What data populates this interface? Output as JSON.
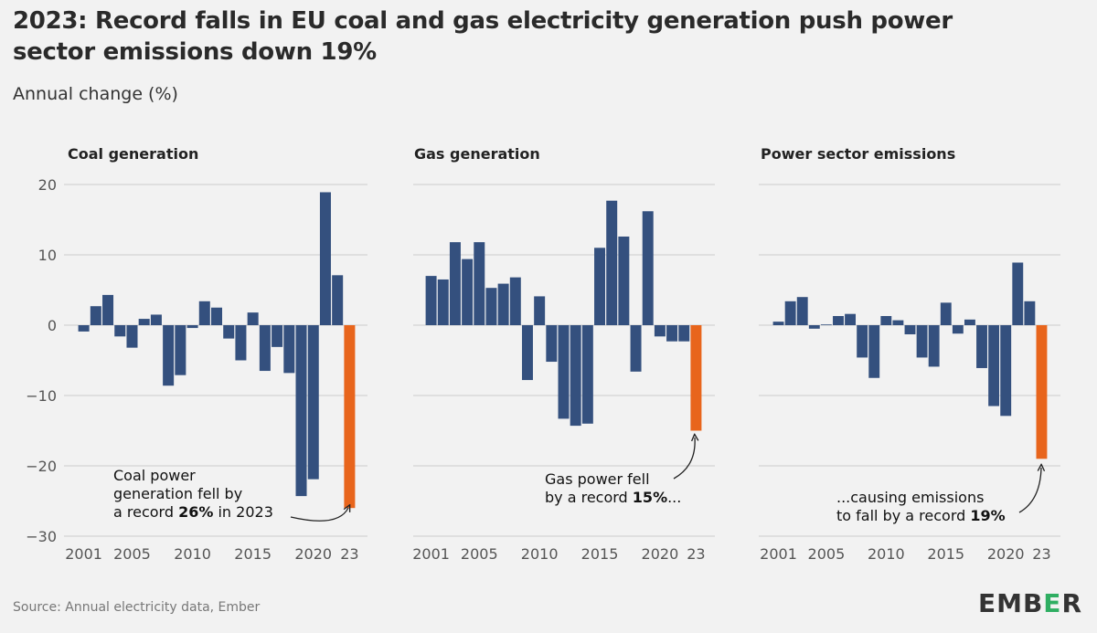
{
  "title": "2023: Record falls in EU coal and gas electricity generation push power sector emissions down 19%",
  "subtitle": "Annual change (%)",
  "source": "Source: Annual electricity data, Ember",
  "logo": {
    "text": "EMBER",
    "accent_color": "#2fae62"
  },
  "colors": {
    "bar": "#34507e",
    "highlight": "#e8651c",
    "grid": "#cccccc",
    "axis_text": "#555555"
  },
  "chart_data": [
    {
      "type": "bar",
      "title": "Coal generation",
      "x": [
        2001,
        2002,
        2003,
        2004,
        2005,
        2006,
        2007,
        2008,
        2009,
        2010,
        2011,
        2012,
        2013,
        2014,
        2015,
        2016,
        2017,
        2018,
        2019,
        2020,
        2021,
        2022,
        2023
      ],
      "values": [
        -0.9,
        2.7,
        4.3,
        -1.6,
        -3.2,
        0.9,
        1.5,
        -8.6,
        -7.1,
        -0.4,
        3.4,
        2.5,
        -1.9,
        -5.0,
        1.8,
        -6.5,
        -3.1,
        -6.8,
        -24.3,
        -21.9,
        18.9,
        7.1,
        -26
      ],
      "highlight_last": true,
      "xticks": [
        "2001",
        "2005",
        "2010",
        "2015",
        "2020",
        "23"
      ],
      "yticks": [
        20,
        10,
        0,
        -10,
        -20,
        -30
      ],
      "ylim": [
        -30,
        20
      ],
      "annotation": {
        "text": [
          "Coal power",
          "generation fell by",
          "a record 26% in 2023"
        ],
        "bold": [
          "26%"
        ]
      }
    },
    {
      "type": "bar",
      "title": "Gas generation",
      "x": [
        2001,
        2002,
        2003,
        2004,
        2005,
        2006,
        2007,
        2008,
        2009,
        2010,
        2011,
        2012,
        2013,
        2014,
        2015,
        2016,
        2017,
        2018,
        2019,
        2020,
        2021,
        2022,
        2023
      ],
      "values": [
        7.0,
        6.5,
        11.8,
        9.4,
        11.8,
        5.3,
        5.9,
        6.8,
        -7.8,
        4.1,
        -5.2,
        -13.3,
        -14.3,
        -14.0,
        11.0,
        17.7,
        12.6,
        -6.6,
        16.2,
        -1.6,
        -2.3,
        -2.3,
        -15
      ],
      "highlight_last": true,
      "xticks": [
        "2001",
        "2005",
        "2010",
        "2015",
        "2020",
        "23"
      ],
      "yticks": [
        20,
        10,
        0,
        -10,
        -20,
        -30
      ],
      "ylim": [
        -30,
        20
      ],
      "annotation": {
        "text": [
          "Gas power fell",
          "by a record 15%..."
        ],
        "bold": [
          "15%"
        ]
      }
    },
    {
      "type": "bar",
      "title": "Power sector emissions",
      "x": [
        2001,
        2002,
        2003,
        2004,
        2005,
        2006,
        2007,
        2008,
        2009,
        2010,
        2011,
        2012,
        2013,
        2014,
        2015,
        2016,
        2017,
        2018,
        2019,
        2020,
        2021,
        2022,
        2023
      ],
      "values": [
        0.5,
        3.4,
        4.0,
        -0.5,
        0.1,
        1.3,
        1.6,
        -4.6,
        -7.5,
        1.3,
        0.7,
        -1.3,
        -4.6,
        -5.9,
        3.2,
        -1.2,
        0.8,
        -6.1,
        -11.5,
        -12.9,
        8.9,
        3.4,
        -19
      ],
      "highlight_last": true,
      "xticks": [
        "2001",
        "2005",
        "2010",
        "2015",
        "2020",
        "23"
      ],
      "yticks": [
        20,
        10,
        0,
        -10,
        -20,
        -30
      ],
      "ylim": [
        -30,
        20
      ],
      "annotation": {
        "text": [
          "...causing emissions",
          "to fall by a record 19%"
        ],
        "bold": [
          "19%"
        ]
      }
    }
  ]
}
